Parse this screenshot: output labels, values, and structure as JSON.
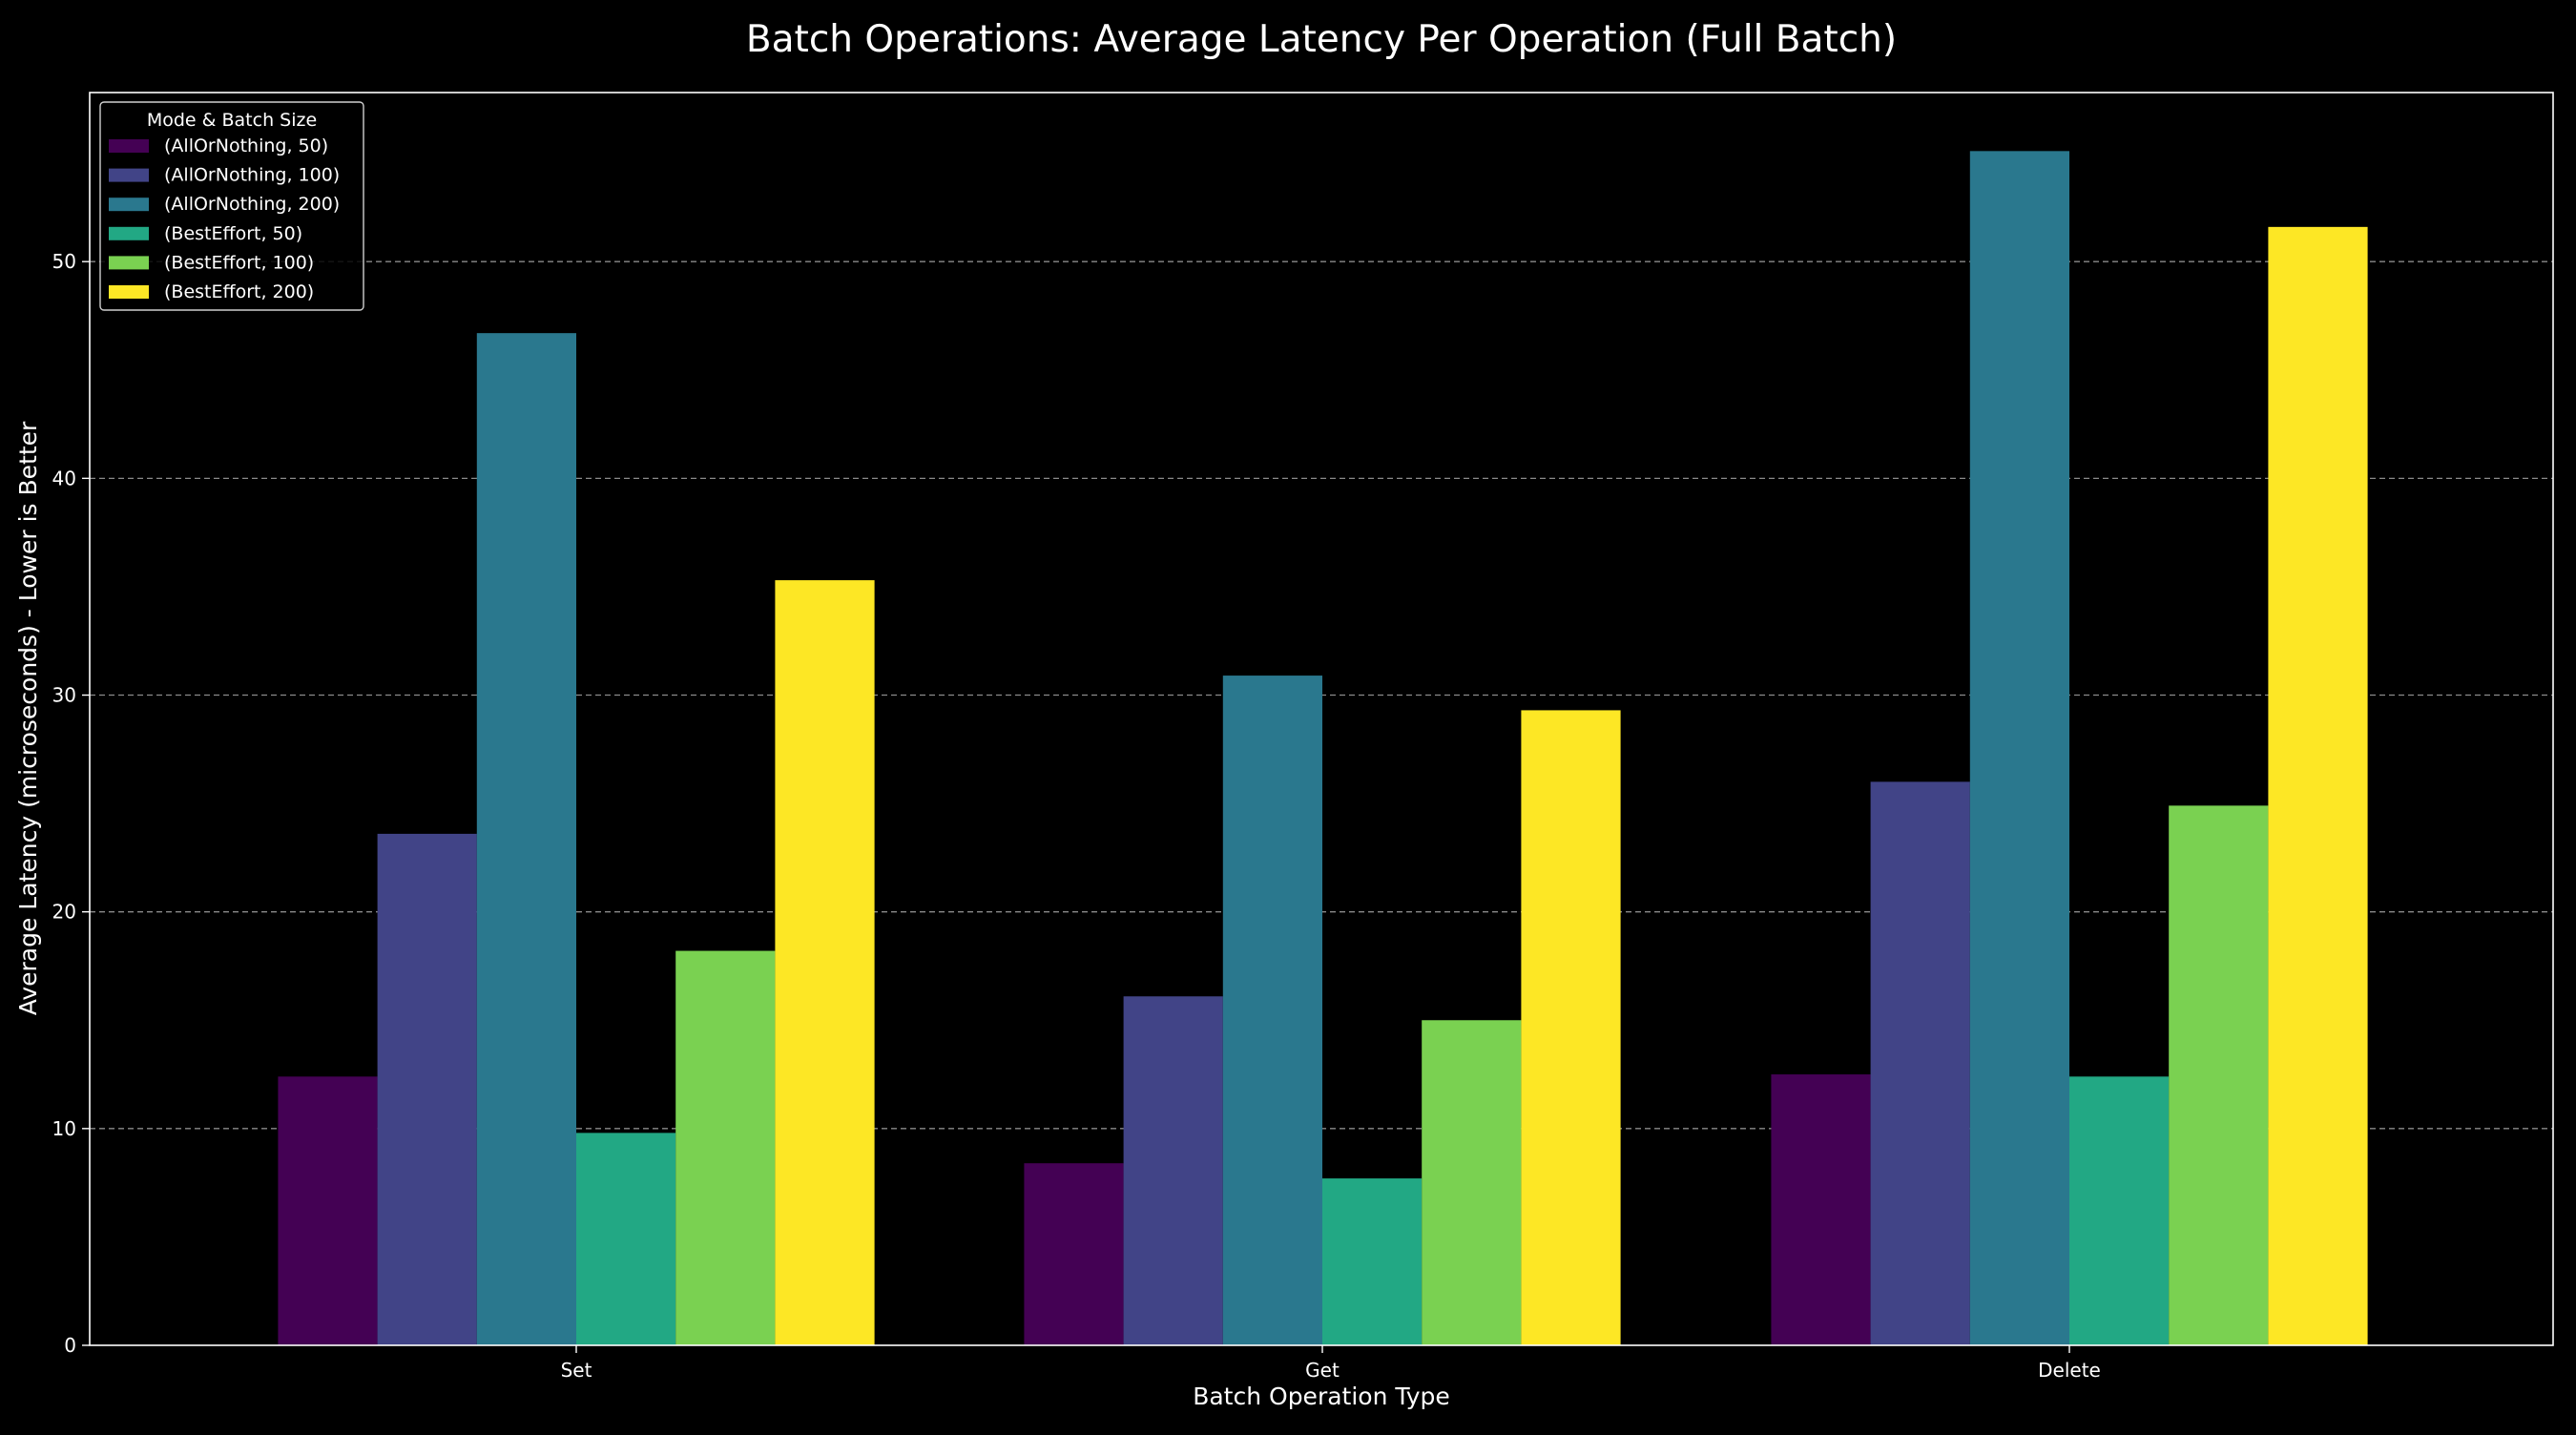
{
  "chart_data": {
    "type": "bar",
    "title": "Batch Operations: Average Latency Per Operation (Full Batch)",
    "xlabel": "Batch Operation Type",
    "ylabel": "Average Latency (microseconds) - Lower is Better",
    "categories": [
      "Set",
      "Get",
      "Delete"
    ],
    "ylim": [
      0,
      57.8
    ],
    "yticks": [
      0,
      10,
      20,
      30,
      40,
      50
    ],
    "grid": "y, dashed",
    "legend": {
      "title": "Mode & Batch Size",
      "placement": "top-left"
    },
    "series": [
      {
        "name": "(AllOrNothing, 50)",
        "color": "#440154",
        "values": [
          12.4,
          8.4,
          12.5
        ]
      },
      {
        "name": "(AllOrNothing, 100)",
        "color": "#414487",
        "values": [
          23.6,
          16.1,
          26.0
        ]
      },
      {
        "name": "(AllOrNothing, 200)",
        "color": "#2a788e",
        "values": [
          46.7,
          30.9,
          55.1
        ]
      },
      {
        "name": "(BestEffort, 50)",
        "color": "#22a884",
        "values": [
          9.8,
          7.7,
          12.4
        ]
      },
      {
        "name": "(BestEffort, 100)",
        "color": "#7ad151",
        "values": [
          18.2,
          15.0,
          24.9
        ]
      },
      {
        "name": "(BestEffort, 200)",
        "color": "#fde725",
        "values": [
          35.3,
          29.3,
          51.6
        ]
      }
    ]
  }
}
